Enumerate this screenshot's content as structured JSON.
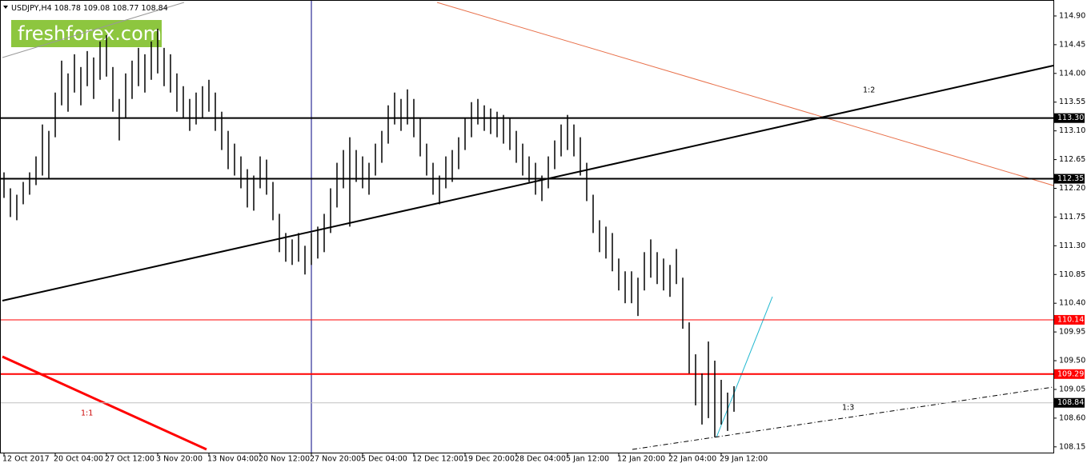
{
  "chart_data": {
    "type": "ohlc",
    "symbol": "USDJPY,H4",
    "quote": [
      108.78,
      109.08,
      108.77,
      108.84
    ],
    "watermark": "freshforex.com",
    "ylim": [
      108.06,
      115.15
    ],
    "yticks": [
      {
        "value": 114.9,
        "label": "114.90"
      },
      114.45,
      {
        "value": 114,
        "label": "114.00"
      },
      113.55,
      {
        "value": 113.1,
        "label": "113.10"
      },
      112.65,
      {
        "value": 112.2,
        "label": "112.20"
      },
      111.75,
      {
        "value": 111.3,
        "label": "111.30"
      },
      110.85,
      {
        "value": 110.4,
        "label": "110.40"
      },
      109.95,
      {
        "value": 109.5,
        "label": "109.50"
      },
      109.05,
      {
        "value": 108.6,
        "label": "108.60"
      },
      108.15
    ],
    "levels": [
      {
        "value": 113.3,
        "label": "113.30",
        "color": "#000000"
      },
      {
        "value": 112.35,
        "label": "112.35",
        "color": "#000000"
      },
      {
        "value": 110.14,
        "label": "110.14",
        "color": "#ff0000"
      },
      {
        "value": 109.29,
        "label": "109.29",
        "color": "#ff0000"
      },
      {
        "value": 108.84,
        "label": "108.84",
        "color": "#c0c0c0"
      }
    ],
    "annotations": [
      "1:1",
      "1:2",
      "1:3"
    ],
    "categories": [
      "12 Oct 2017",
      null,
      null,
      null,
      null,
      null,
      null,
      null,
      "20 Oct 04:00",
      null,
      null,
      null,
      null,
      null,
      null,
      null,
      "27 Oct 12:00",
      null,
      null,
      null,
      null,
      null,
      null,
      null,
      "3 Nov 20:00",
      null,
      null,
      null,
      null,
      null,
      null,
      null,
      "13 Nov 04:00",
      null,
      null,
      null,
      null,
      null,
      null,
      null,
      "20 Nov 12:00",
      null,
      null,
      null,
      null,
      null,
      null,
      null,
      "27 Nov 20:00",
      null,
      null,
      null,
      null,
      null,
      null,
      null,
      "5 Dec 04:00",
      null,
      null,
      null,
      null,
      null,
      null,
      null,
      "12 Dec 12:00",
      null,
      null,
      null,
      null,
      null,
      null,
      null,
      "19 Dec 20:00",
      null,
      null,
      null,
      null,
      null,
      null,
      null,
      "28 Dec 04:00",
      null,
      null,
      null,
      null,
      null,
      null,
      null,
      "5 Jan 12:00",
      null,
      null,
      null,
      null,
      null,
      null,
      null,
      "12 Jan 20:00",
      null,
      null,
      null,
      null,
      null,
      null,
      null,
      "22 Jan 04:00",
      null,
      null,
      null,
      null,
      null,
      null,
      null,
      "29 Jan 12:00",
      null,
      null
    ],
    "high": [
      112.45,
      112.2,
      112.1,
      112.3,
      112.45,
      112.7,
      113.2,
      113.1,
      113.7,
      114.2,
      114,
      114.3,
      114.1,
      114.35,
      114.25,
      114.5,
      114.6,
      114.1,
      113.6,
      114,
      114.2,
      114.4,
      114.3,
      114.5,
      114.7,
      114.4,
      114.3,
      114,
      113.8,
      113.6,
      113.7,
      113.8,
      113.9,
      113.7,
      113.4,
      113.1,
      112.9,
      112.7,
      112.5,
      112.4,
      112.7,
      112.65,
      112.3,
      111.8,
      111.5,
      111.4,
      111.5,
      111.3,
      111.5,
      111.6,
      111.8,
      112.2,
      112.6,
      112.8,
      113,
      112.8,
      112.7,
      112.6,
      112.9,
      113.1,
      113.5,
      113.7,
      113.6,
      113.75,
      113.6,
      113.3,
      112.9,
      112.6,
      112.4,
      112.7,
      112.8,
      113,
      113.3,
      113.55,
      113.6,
      113.5,
      113.45,
      113.4,
      113.35,
      113.3,
      113.1,
      112.9,
      112.7,
      112.6,
      112.4,
      112.7,
      112.95,
      113.2,
      113.35,
      113.2,
      113,
      112.6,
      112.1,
      111.7,
      111.6,
      111.5,
      111.1,
      110.9,
      110.9,
      110.8,
      111.2,
      111.4,
      111.2,
      111.1,
      111,
      111.25,
      110.8,
      110.1,
      109.6,
      109.3,
      109.8,
      109.5,
      109.2,
      109,
      109.1
    ],
    "low": [
      112.05,
      111.75,
      111.7,
      111.95,
      112.1,
      112.25,
      112.4,
      112.35,
      113,
      113.5,
      113.4,
      113.7,
      113.5,
      113.8,
      113.6,
      113.9,
      113.95,
      113.4,
      112.95,
      113.3,
      113.6,
      113.8,
      113.7,
      113.9,
      114,
      113.8,
      113.7,
      113.4,
      113.3,
      113.1,
      113.2,
      113.3,
      113.4,
      113.1,
      112.8,
      112.5,
      112.4,
      112.2,
      111.9,
      111.85,
      112.2,
      112.1,
      111.7,
      111.2,
      111.05,
      111,
      111.05,
      110.85,
      111,
      111.1,
      111.2,
      111.5,
      111.9,
      112.2,
      111.6,
      112.3,
      112.2,
      112.1,
      112.4,
      112.6,
      112.9,
      113.2,
      113.1,
      113.2,
      113,
      112.7,
      112.4,
      112.1,
      111.95,
      112.2,
      112.3,
      112.5,
      112.8,
      113,
      113.2,
      113.1,
      113.05,
      113,
      112.9,
      112.8,
      112.6,
      112.4,
      112.3,
      112.1,
      112,
      112.2,
      112.5,
      112.7,
      112.8,
      112.7,
      112.4,
      112,
      111.5,
      111.2,
      111.1,
      110.9,
      110.6,
      110.4,
      110.4,
      110.2,
      110.6,
      110.8,
      110.7,
      110.6,
      110.5,
      110.7,
      110,
      109.3,
      108.8,
      108.5,
      108.6,
      108.3,
      108.5,
      108.4,
      108.7
    ]
  }
}
